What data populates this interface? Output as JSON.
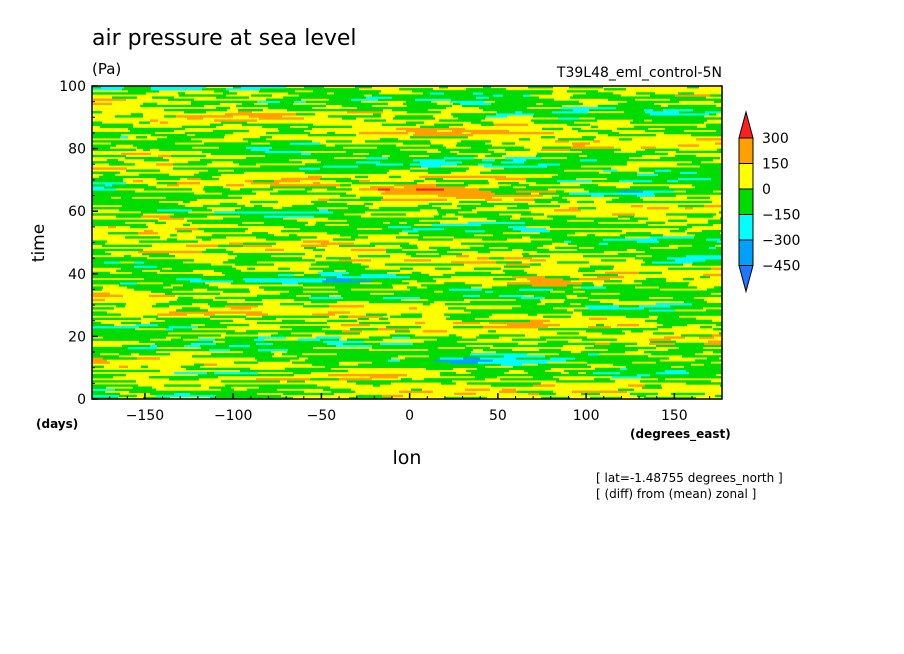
{
  "chart_data": {
    "type": "heatmap",
    "title": "air pressure at sea level",
    "units": "(Pa)",
    "experiment": "T39L48_eml_control-5N",
    "xlabel": "lon",
    "xunits": "(degrees_east)",
    "ylabel": "time",
    "yunits": "(days)",
    "xlim": [
      -180,
      177
    ],
    "ylim": [
      0,
      100
    ],
    "xticks": [
      -150,
      -100,
      -50,
      0,
      50,
      100,
      150
    ],
    "yticks": [
      0,
      20,
      40,
      60,
      80,
      100
    ],
    "notes": [
      "[ lat=-1.48755 degrees_north ]",
      "[ (diff) from (mean) zonal ]"
    ],
    "colorbar": {
      "levels": [
        -450,
        -300,
        -150,
        0,
        150,
        300
      ],
      "labels": [
        "300",
        "150",
        "0",
        "-150",
        "-300",
        "-450"
      ],
      "colors": [
        "#1e78ff",
        "#00a0ff",
        "#00ffff",
        "#00dc00",
        "#ffff00",
        "#ffa000",
        "#ff1e1e"
      ],
      "extend": "both"
    },
    "anomalies": [
      {
        "lon": 8,
        "time": 67,
        "value": 330
      },
      {
        "lon": 45,
        "time": 71,
        "value": 200
      },
      {
        "lon": -150,
        "time": 78.5,
        "value": 310
      },
      {
        "lon": 75,
        "time": 37,
        "value": 200
      },
      {
        "lon": -140,
        "time": 58,
        "value": 180
      },
      {
        "lon": 120,
        "time": 66,
        "value": -320
      },
      {
        "lon": -175,
        "time": 68,
        "value": -300
      },
      {
        "lon": 160,
        "time": 45,
        "value": -300
      },
      {
        "lon": 40,
        "time": 12,
        "value": -300
      },
      {
        "lon": -40,
        "time": 38,
        "value": -200
      },
      {
        "lon": -100,
        "time": 8,
        "value": -220
      }
    ]
  }
}
